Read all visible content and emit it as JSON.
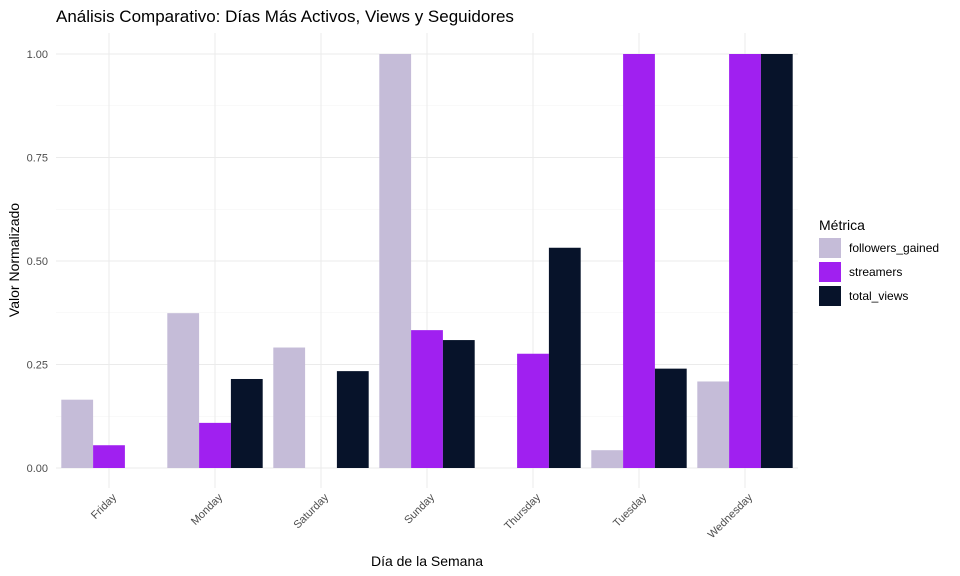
{
  "chart_data": {
    "type": "bar",
    "title": "Análisis Comparativo: Días Más Activos, Views y Seguidores",
    "xlabel": "Día de la Semana",
    "ylabel": "Valor Normalizado",
    "categories": [
      "Friday",
      "Monday",
      "Saturday",
      "Sunday",
      "Thursday",
      "Tuesday",
      "Wednesday"
    ],
    "series": [
      {
        "name": "followers_gained",
        "color": "#c5bcd8",
        "values": [
          0.165,
          0.374,
          0.291,
          1.0,
          0.0,
          0.043,
          0.209
        ]
      },
      {
        "name": "streamers",
        "color": "#a020f0",
        "values": [
          0.055,
          0.109,
          0.0,
          0.333,
          0.276,
          1.0,
          1.0
        ]
      },
      {
        "name": "total_views",
        "color": "#07132a",
        "values": [
          0.0,
          0.215,
          0.234,
          0.309,
          0.532,
          0.24,
          1.0
        ]
      }
    ],
    "ylim": [
      0,
      1.05
    ],
    "yticks": [
      0.0,
      0.25,
      0.5,
      0.75,
      1.0
    ],
    "ytick_labels": [
      "0.00",
      "0.25",
      "0.50",
      "0.75",
      "1.00"
    ],
    "legend": {
      "title": "Métrica",
      "position": "right"
    },
    "grid": true
  }
}
